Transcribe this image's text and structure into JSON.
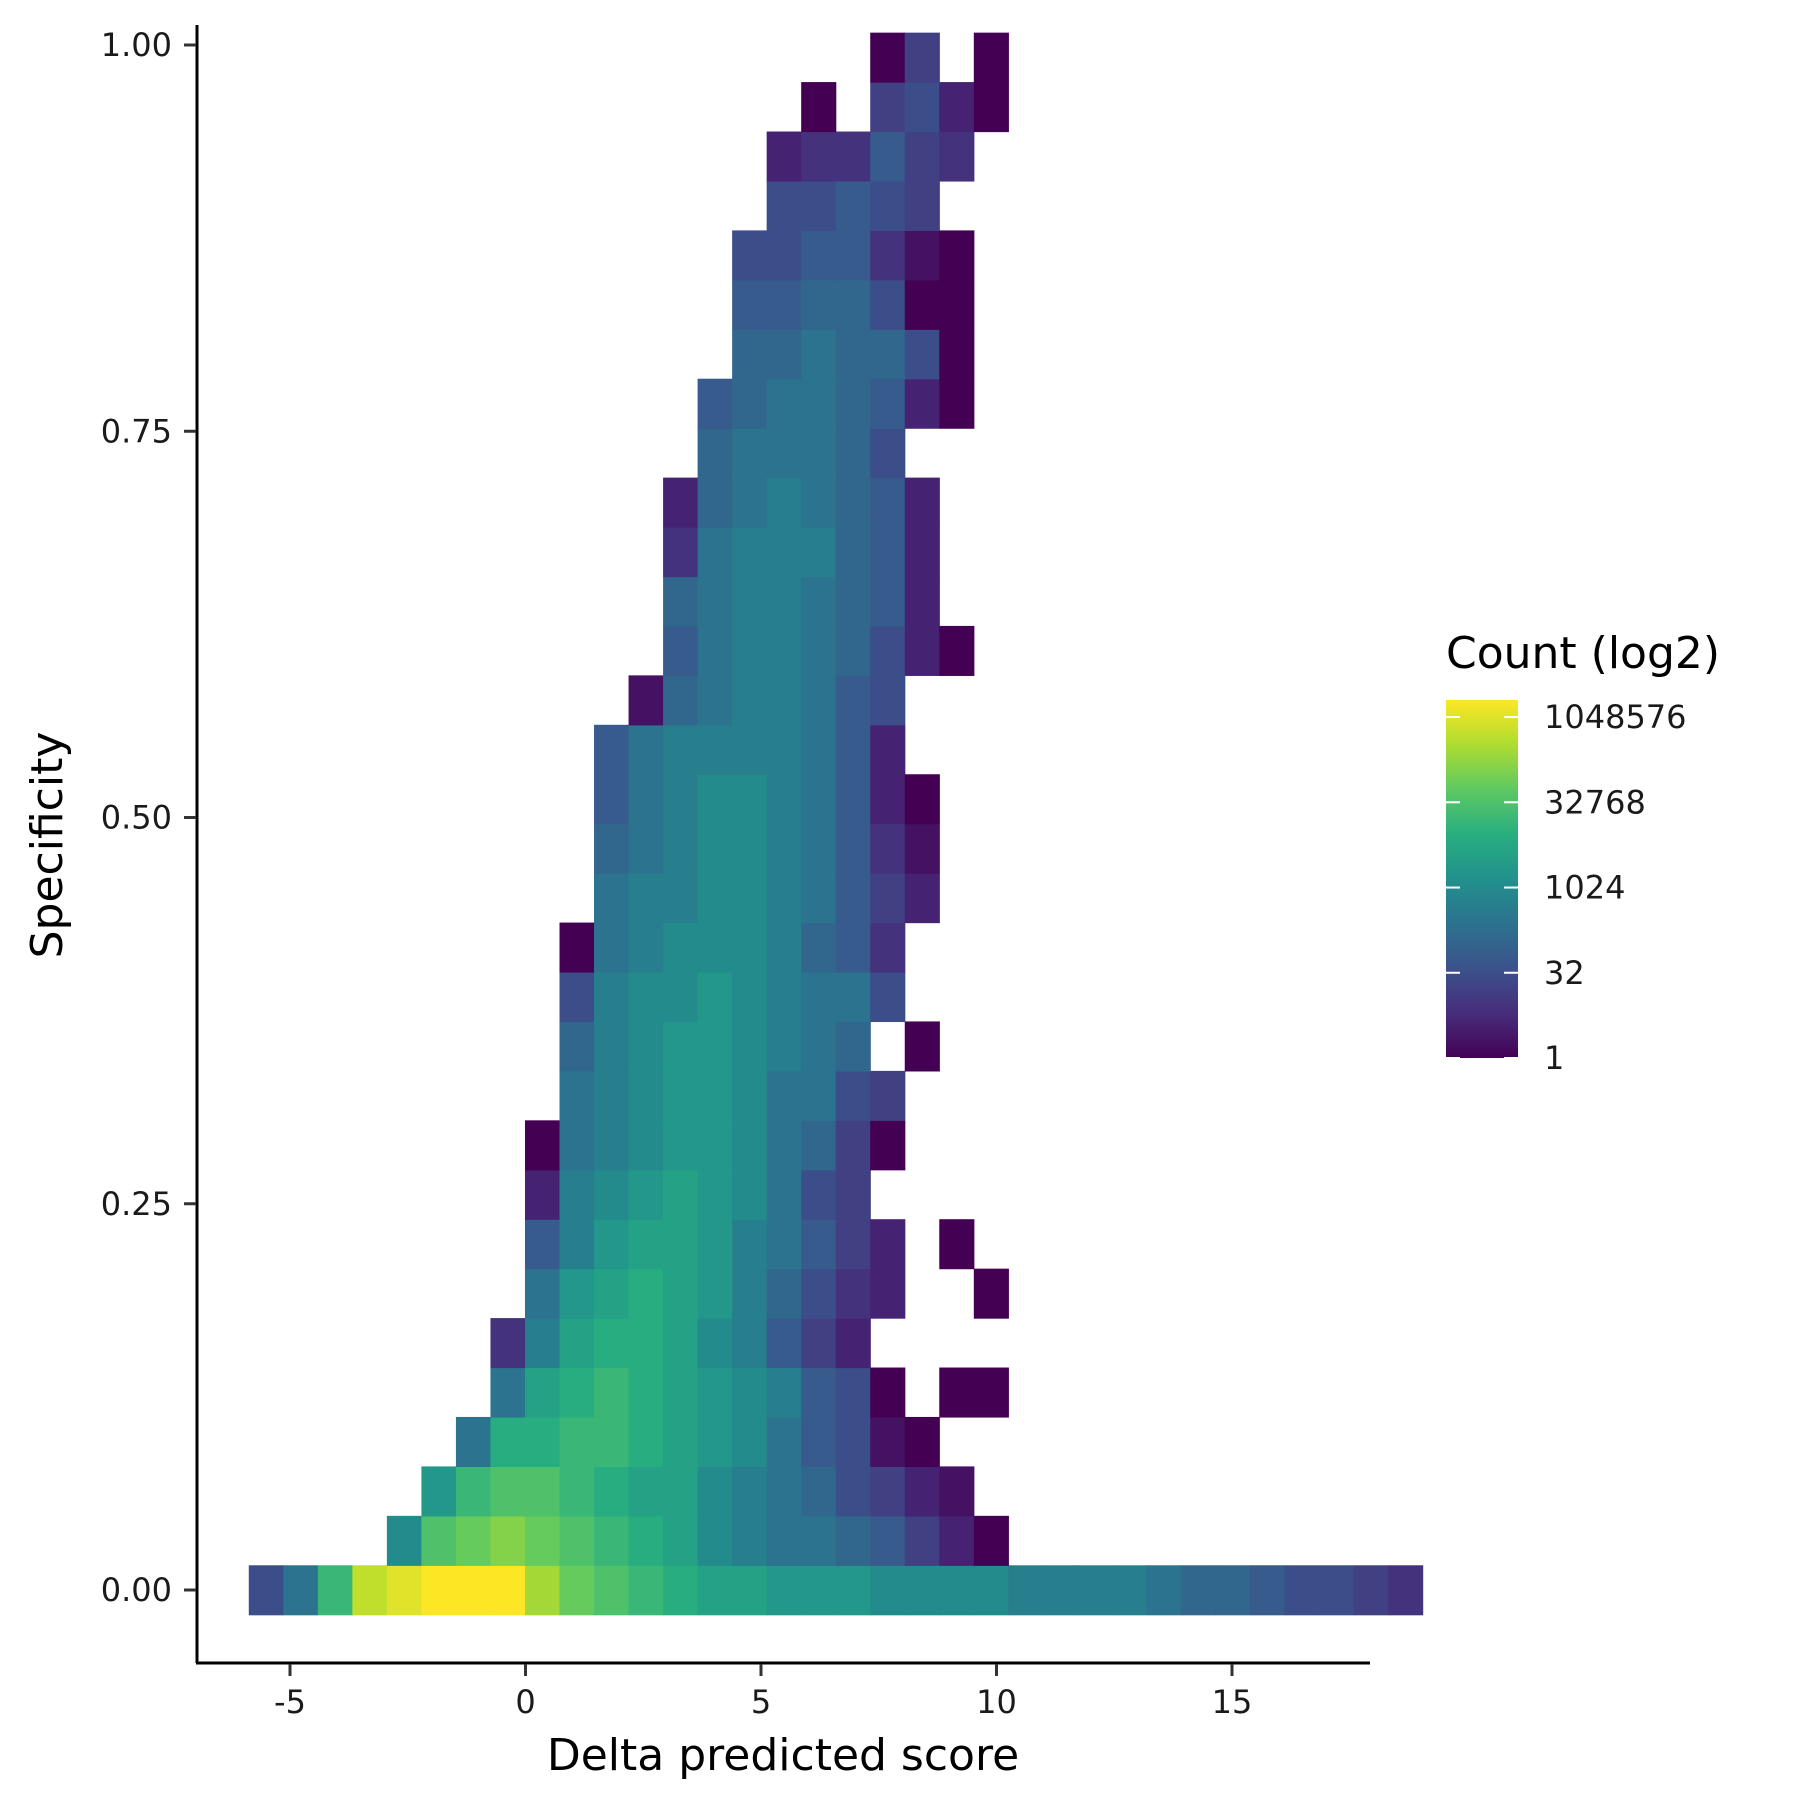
{
  "chart_data": {
    "type": "heatmap",
    "title": "",
    "xlabel": "Delta predicted score",
    "ylabel": "Specificity",
    "xlim": [
      -7,
      18
    ],
    "ylim": [
      -0.04,
      1.015
    ],
    "x_ticks": [
      -5,
      0,
      5,
      10,
      15
    ],
    "x_tick_labels": [
      "-5",
      "0",
      "5",
      "10",
      "15"
    ],
    "y_ticks": [
      0,
      0.25,
      0.5,
      0.75,
      1.0
    ],
    "y_tick_labels": [
      "0.00",
      "0.25",
      "0.50",
      "0.75",
      "1.00"
    ],
    "grid": false,
    "legend": {
      "title": "Count (log2)",
      "position": "right",
      "scale": "log2",
      "colormap": "viridis",
      "min": 1,
      "max": 2097152,
      "breaks": [
        1,
        32,
        1024,
        32768,
        1048576
      ],
      "break_labels": [
        "1",
        "32",
        "1024",
        "32768",
        "1048576"
      ]
    },
    "x_bins": {
      "start": -5.875,
      "width": 0.733
    },
    "y_bins": {
      "center_start": 0.0,
      "height": 0.032
    },
    "cells": [
      [
        0,
        0,
        5
      ],
      [
        0,
        1,
        8
      ],
      [
        0,
        2,
        14
      ],
      [
        0,
        3,
        19
      ],
      [
        0,
        4,
        20
      ],
      [
        0,
        5,
        21
      ],
      [
        0,
        6,
        21
      ],
      [
        0,
        7,
        21
      ],
      [
        0,
        8,
        18
      ],
      [
        0,
        9,
        16
      ],
      [
        0,
        10,
        15
      ],
      [
        0,
        11,
        14
      ],
      [
        0,
        12,
        13
      ],
      [
        0,
        13,
        12
      ],
      [
        0,
        14,
        12
      ],
      [
        0,
        15,
        11
      ],
      [
        0,
        16,
        11
      ],
      [
        0,
        17,
        11
      ],
      [
        0,
        18,
        10
      ],
      [
        0,
        19,
        10
      ],
      [
        0,
        20,
        10
      ],
      [
        0,
        21,
        10
      ],
      [
        0,
        22,
        9
      ],
      [
        0,
        23,
        9
      ],
      [
        0,
        24,
        9
      ],
      [
        0,
        25,
        9
      ],
      [
        0,
        26,
        8
      ],
      [
        0,
        27,
        7
      ],
      [
        0,
        28,
        7
      ],
      [
        0,
        29,
        6
      ],
      [
        0,
        30,
        5
      ],
      [
        0,
        31,
        5
      ],
      [
        0,
        32,
        4
      ],
      [
        0,
        33,
        3
      ],
      [
        1,
        4,
        10
      ],
      [
        1,
        5,
        15
      ],
      [
        1,
        6,
        16
      ],
      [
        1,
        7,
        17
      ],
      [
        1,
        8,
        16
      ],
      [
        1,
        9,
        15
      ],
      [
        1,
        10,
        14
      ],
      [
        1,
        11,
        13
      ],
      [
        1,
        12,
        12
      ],
      [
        1,
        13,
        10
      ],
      [
        1,
        14,
        9
      ],
      [
        1,
        15,
        8
      ],
      [
        1,
        16,
        8
      ],
      [
        1,
        17,
        7
      ],
      [
        1,
        18,
        6
      ],
      [
        1,
        19,
        4
      ],
      [
        1,
        20,
        2
      ],
      [
        1,
        21,
        0
      ],
      [
        2,
        5,
        11
      ],
      [
        2,
        6,
        14
      ],
      [
        2,
        7,
        15
      ],
      [
        2,
        8,
        15
      ],
      [
        2,
        9,
        14
      ],
      [
        2,
        10,
        13
      ],
      [
        2,
        11,
        12
      ],
      [
        2,
        12,
        12
      ],
      [
        2,
        13,
        10
      ],
      [
        2,
        14,
        9
      ],
      [
        2,
        15,
        8
      ],
      [
        2,
        16,
        7
      ],
      [
        2,
        17,
        5
      ],
      [
        2,
        18,
        4
      ],
      [
        2,
        19,
        2
      ],
      [
        2,
        20,
        1
      ],
      [
        3,
        6,
        8
      ],
      [
        3,
        7,
        13
      ],
      [
        3,
        8,
        13
      ],
      [
        3,
        9,
        14
      ],
      [
        3,
        10,
        14
      ],
      [
        3,
        11,
        13
      ],
      [
        3,
        12,
        12
      ],
      [
        3,
        13,
        11
      ],
      [
        3,
        14,
        10
      ],
      [
        3,
        15,
        8
      ],
      [
        3,
        16,
        6
      ],
      [
        3,
        17,
        5
      ],
      [
        3,
        18,
        1
      ],
      [
        3,
        19,
        0
      ],
      [
        4,
        7,
        8
      ],
      [
        4,
        8,
        12
      ],
      [
        4,
        9,
        13
      ],
      [
        4,
        10,
        14
      ],
      [
        4,
        11,
        13
      ],
      [
        4,
        12,
        12
      ],
      [
        4,
        13,
        11
      ],
      [
        4,
        14,
        10
      ],
      [
        4,
        15,
        9
      ],
      [
        4,
        16,
        6
      ],
      [
        4,
        17,
        5
      ],
      [
        4,
        18,
        0
      ],
      [
        4,
        20,
        0
      ],
      [
        4,
        21,
        0
      ],
      [
        5,
        7,
        3
      ],
      [
        5,
        8,
        9
      ],
      [
        5,
        9,
        12
      ],
      [
        5,
        10,
        13
      ],
      [
        5,
        11,
        13
      ],
      [
        5,
        12,
        12
      ],
      [
        5,
        13,
        10
      ],
      [
        5,
        14,
        9
      ],
      [
        5,
        15,
        6
      ],
      [
        5,
        16,
        4
      ],
      [
        5,
        17,
        2
      ],
      [
        6,
        8,
        8
      ],
      [
        6,
        9,
        11
      ],
      [
        6,
        10,
        12
      ],
      [
        6,
        11,
        13
      ],
      [
        6,
        12,
        12
      ],
      [
        6,
        13,
        11
      ],
      [
        6,
        14,
        9
      ],
      [
        6,
        15,
        7
      ],
      [
        6,
        16,
        5
      ],
      [
        6,
        17,
        3
      ],
      [
        6,
        18,
        2
      ],
      [
        6,
        21,
        0
      ],
      [
        7,
        8,
        6
      ],
      [
        7,
        9,
        9
      ],
      [
        7,
        10,
        11
      ],
      [
        7,
        11,
        12
      ],
      [
        7,
        12,
        12
      ],
      [
        7,
        13,
        11
      ],
      [
        7,
        14,
        9
      ],
      [
        7,
        15,
        8
      ],
      [
        7,
        16,
        6
      ],
      [
        7,
        17,
        4
      ],
      [
        7,
        18,
        2
      ],
      [
        7,
        20,
        0
      ],
      [
        8,
        8,
        2
      ],
      [
        8,
        9,
        9
      ],
      [
        8,
        10,
        10
      ],
      [
        8,
        11,
        11
      ],
      [
        8,
        12,
        12
      ],
      [
        8,
        13,
        11
      ],
      [
        8,
        14,
        10
      ],
      [
        8,
        15,
        8
      ],
      [
        8,
        16,
        5
      ],
      [
        8,
        17,
        4
      ],
      [
        9,
        8,
        0
      ],
      [
        9,
        9,
        8
      ],
      [
        9,
        10,
        9
      ],
      [
        9,
        11,
        10
      ],
      [
        9,
        12,
        11
      ],
      [
        9,
        13,
        11
      ],
      [
        9,
        14,
        10
      ],
      [
        9,
        15,
        8
      ],
      [
        9,
        16,
        7
      ],
      [
        9,
        17,
        4
      ],
      [
        9,
        18,
        0
      ],
      [
        10,
        9,
        8
      ],
      [
        10,
        10,
        9
      ],
      [
        10,
        11,
        10
      ],
      [
        10,
        12,
        11
      ],
      [
        10,
        13,
        11
      ],
      [
        10,
        14,
        10
      ],
      [
        10,
        15,
        8
      ],
      [
        10,
        16,
        8
      ],
      [
        10,
        17,
        5
      ],
      [
        10,
        18,
        4
      ],
      [
        11,
        9,
        7
      ],
      [
        11,
        10,
        9
      ],
      [
        11,
        11,
        10
      ],
      [
        11,
        12,
        11
      ],
      [
        11,
        13,
        11
      ],
      [
        11,
        14,
        10
      ],
      [
        11,
        15,
        9
      ],
      [
        11,
        16,
        8
      ],
      [
        11,
        17,
        7
      ],
      [
        11,
        19,
        0
      ],
      [
        12,
        9,
        5
      ],
      [
        12,
        10,
        9
      ],
      [
        12,
        11,
        10
      ],
      [
        12,
        12,
        10
      ],
      [
        12,
        13,
        11
      ],
      [
        12,
        14,
        10
      ],
      [
        12,
        15,
        9
      ],
      [
        12,
        16,
        8
      ],
      [
        12,
        17,
        8
      ],
      [
        12,
        18,
        5
      ],
      [
        13,
        9,
        0
      ],
      [
        13,
        10,
        8
      ],
      [
        13,
        11,
        9
      ],
      [
        13,
        12,
        10
      ],
      [
        13,
        13,
        10
      ],
      [
        13,
        14,
        10
      ],
      [
        13,
        15,
        9
      ],
      [
        13,
        16,
        7
      ],
      [
        13,
        17,
        6
      ],
      [
        13,
        18,
        3
      ],
      [
        14,
        10,
        8
      ],
      [
        14,
        11,
        9
      ],
      [
        14,
        12,
        9
      ],
      [
        14,
        13,
        10
      ],
      [
        14,
        14,
        10
      ],
      [
        14,
        15,
        9
      ],
      [
        14,
        16,
        8
      ],
      [
        14,
        17,
        6
      ],
      [
        14,
        18,
        4
      ],
      [
        14,
        19,
        2
      ],
      [
        15,
        10,
        7
      ],
      [
        15,
        11,
        8
      ],
      [
        15,
        12,
        9
      ],
      [
        15,
        13,
        10
      ],
      [
        15,
        14,
        10
      ],
      [
        15,
        15,
        9
      ],
      [
        15,
        16,
        8
      ],
      [
        15,
        17,
        6
      ],
      [
        15,
        18,
        3
      ],
      [
        15,
        19,
        1
      ],
      [
        16,
        10,
        6
      ],
      [
        16,
        11,
        8
      ],
      [
        16,
        12,
        9
      ],
      [
        16,
        13,
        10
      ],
      [
        16,
        14,
        10
      ],
      [
        16,
        15,
        9
      ],
      [
        16,
        16,
        8
      ],
      [
        16,
        17,
        6
      ],
      [
        16,
        18,
        2
      ],
      [
        16,
        19,
        0
      ],
      [
        17,
        10,
        6
      ],
      [
        17,
        11,
        8
      ],
      [
        17,
        12,
        9
      ],
      [
        17,
        13,
        9
      ],
      [
        17,
        14,
        9
      ],
      [
        17,
        15,
        9
      ],
      [
        17,
        16,
        8
      ],
      [
        17,
        17,
        6
      ],
      [
        17,
        18,
        2
      ],
      [
        18,
        11,
        1
      ],
      [
        18,
        12,
        7
      ],
      [
        18,
        13,
        8
      ],
      [
        18,
        14,
        9
      ],
      [
        18,
        15,
        9
      ],
      [
        18,
        16,
        8
      ],
      [
        18,
        17,
        6
      ],
      [
        18,
        18,
        5
      ],
      [
        19,
        12,
        6
      ],
      [
        19,
        13,
        8
      ],
      [
        19,
        14,
        9
      ],
      [
        19,
        15,
        9
      ],
      [
        19,
        16,
        8
      ],
      [
        19,
        17,
        7
      ],
      [
        19,
        18,
        5
      ],
      [
        19,
        19,
        2
      ],
      [
        19,
        20,
        0
      ],
      [
        20,
        12,
        7
      ],
      [
        20,
        13,
        8
      ],
      [
        20,
        14,
        9
      ],
      [
        20,
        15,
        9
      ],
      [
        20,
        16,
        8
      ],
      [
        20,
        17,
        7
      ],
      [
        20,
        18,
        6
      ],
      [
        20,
        19,
        2
      ],
      [
        21,
        12,
        3
      ],
      [
        21,
        13,
        8
      ],
      [
        21,
        14,
        9
      ],
      [
        21,
        15,
        9
      ],
      [
        21,
        16,
        9
      ],
      [
        21,
        17,
        7
      ],
      [
        21,
        18,
        6
      ],
      [
        21,
        19,
        2
      ],
      [
        22,
        12,
        2
      ],
      [
        22,
        13,
        7
      ],
      [
        22,
        14,
        8
      ],
      [
        22,
        15,
        9
      ],
      [
        22,
        16,
        8
      ],
      [
        22,
        17,
        7
      ],
      [
        22,
        18,
        6
      ],
      [
        22,
        19,
        2
      ],
      [
        23,
        13,
        7
      ],
      [
        23,
        14,
        8
      ],
      [
        23,
        15,
        8
      ],
      [
        23,
        16,
        8
      ],
      [
        23,
        17,
        7
      ],
      [
        23,
        18,
        5
      ],
      [
        24,
        13,
        6
      ],
      [
        24,
        14,
        7
      ],
      [
        24,
        15,
        8
      ],
      [
        24,
        16,
        8
      ],
      [
        24,
        17,
        7
      ],
      [
        24,
        18,
        6
      ],
      [
        24,
        19,
        2
      ],
      [
        24,
        20,
        0
      ],
      [
        25,
        14,
        7
      ],
      [
        25,
        15,
        7
      ],
      [
        25,
        16,
        8
      ],
      [
        25,
        17,
        7
      ],
      [
        25,
        18,
        7
      ],
      [
        25,
        19,
        5
      ],
      [
        25,
        20,
        0
      ],
      [
        26,
        14,
        6
      ],
      [
        26,
        15,
        6
      ],
      [
        26,
        16,
        7
      ],
      [
        26,
        17,
        7
      ],
      [
        26,
        18,
        5
      ],
      [
        26,
        19,
        0
      ],
      [
        26,
        20,
        0
      ],
      [
        27,
        14,
        5
      ],
      [
        27,
        15,
        5
      ],
      [
        27,
        16,
        6
      ],
      [
        27,
        17,
        6
      ],
      [
        27,
        18,
        3
      ],
      [
        27,
        19,
        1
      ],
      [
        27,
        20,
        0
      ],
      [
        28,
        15,
        5
      ],
      [
        28,
        16,
        5
      ],
      [
        28,
        17,
        6
      ],
      [
        28,
        18,
        5
      ],
      [
        28,
        19,
        4
      ],
      [
        29,
        15,
        2
      ],
      [
        29,
        16,
        3
      ],
      [
        29,
        17,
        3
      ],
      [
        29,
        18,
        6
      ],
      [
        29,
        19,
        4
      ],
      [
        29,
        20,
        3
      ],
      [
        30,
        16,
        0
      ],
      [
        30,
        18,
        4
      ],
      [
        30,
        19,
        5
      ],
      [
        30,
        20,
        2
      ],
      [
        30,
        21,
        0
      ],
      [
        31,
        18,
        0
      ],
      [
        31,
        19,
        4
      ],
      [
        31,
        21,
        0
      ]
    ]
  }
}
